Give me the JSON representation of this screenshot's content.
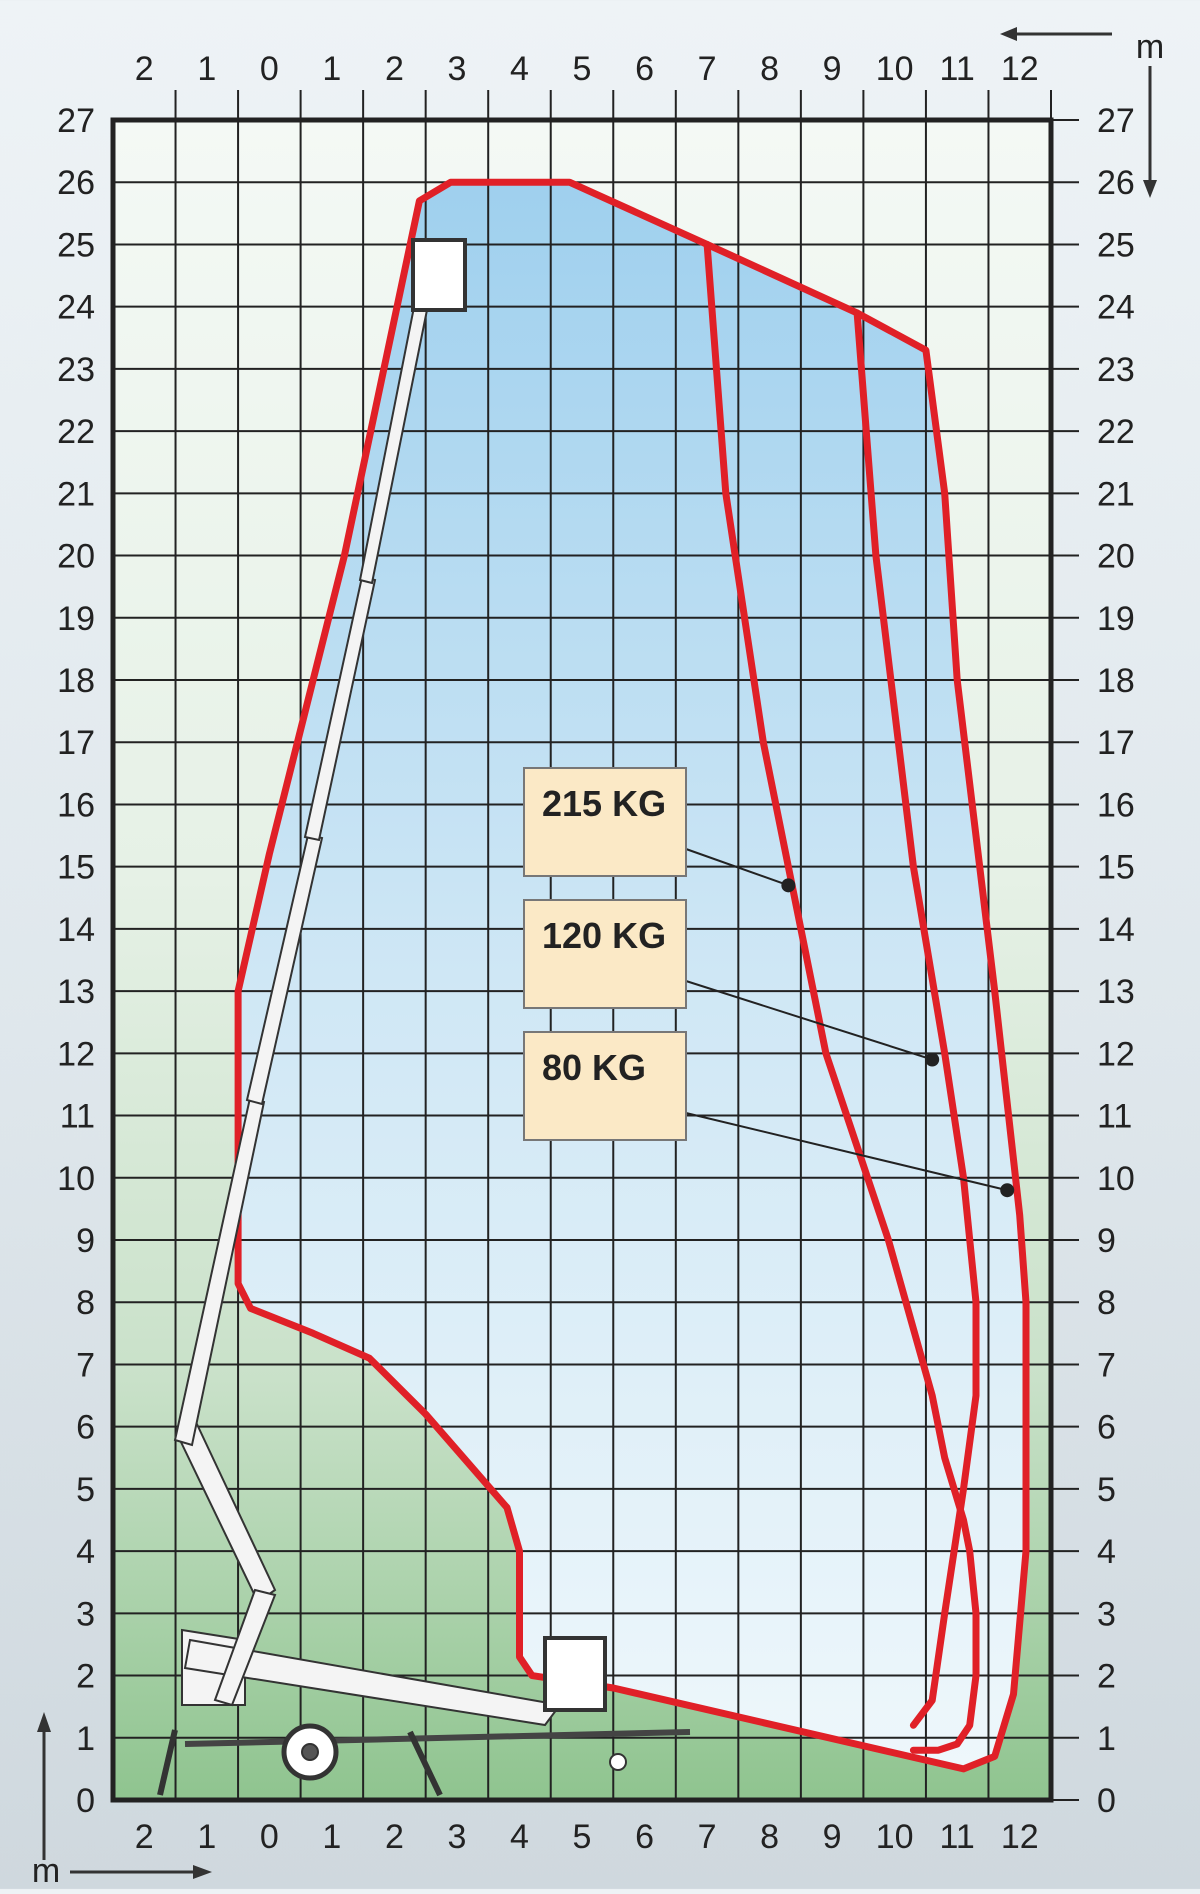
{
  "chart_data": {
    "type": "line",
    "title": "",
    "xlabel": "m",
    "ylabel": "m",
    "x_units": "m",
    "y_units": "m",
    "xlim": [
      -3,
      12
    ],
    "ylim": [
      0,
      27
    ],
    "grid": true,
    "x_tick_labels": [
      "2",
      "1",
      "0",
      "1",
      "2",
      "3",
      "4",
      "5",
      "6",
      "7",
      "8",
      "9",
      "10",
      "11",
      "12"
    ],
    "y_tick_labels": [
      "0",
      "1",
      "2",
      "3",
      "4",
      "5",
      "6",
      "7",
      "8",
      "9",
      "10",
      "11",
      "12",
      "13",
      "14",
      "15",
      "16",
      "17",
      "18",
      "19",
      "20",
      "21",
      "22",
      "23",
      "24",
      "25",
      "26",
      "27"
    ],
    "series": [
      {
        "name": "80 KG",
        "color": "#e02027",
        "x": [
          -1.0,
          -1.0,
          -0.5,
          0.7,
          1.9,
          2.4,
          4.3,
          6.5,
          8.9,
          10.0,
          10.3,
          10.5,
          11.1,
          11.5,
          11.6,
          11.6,
          11.4,
          11.1,
          10.6,
          5.0,
          3.7,
          3.5,
          3.5,
          3.3,
          2.0,
          1.1,
          0.2,
          -0.8,
          -1.0,
          -1.0
        ],
        "y": [
          11.6,
          13.0,
          15.2,
          20.0,
          25.7,
          26.0,
          26.0,
          25.0,
          23.9,
          23.3,
          21.0,
          18.0,
          13.0,
          9.4,
          8.0,
          4.0,
          1.7,
          0.7,
          0.5,
          1.8,
          2.0,
          2.3,
          4.0,
          4.7,
          6.2,
          7.1,
          7.5,
          7.9,
          8.3,
          9.3
        ]
      },
      {
        "name": "120 KG",
        "color": "#e02027",
        "x": [
          6.5,
          6.8,
          7.4,
          8.4,
          9.4,
          10.1,
          10.3,
          10.6,
          10.7,
          10.8,
          10.8,
          10.7,
          10.5,
          10.2,
          9.8
        ],
        "y": [
          25.0,
          21.0,
          17.0,
          12.0,
          9.0,
          6.5,
          5.5,
          4.5,
          4.0,
          3.0,
          2.0,
          1.2,
          0.9,
          0.8,
          0.8
        ]
      },
      {
        "name": "215 KG",
        "color": "#e02027",
        "x": [
          8.9,
          9.2,
          9.8,
          10.3,
          10.6,
          10.8,
          10.8,
          10.6,
          10.3,
          10.1,
          9.8
        ],
        "y": [
          23.9,
          20.0,
          15.0,
          12.0,
          10.0,
          8.0,
          6.5,
          5.0,
          3.0,
          1.6,
          1.2
        ]
      }
    ],
    "annotations": [
      {
        "text": "215 KG",
        "points_to": [
          7.8,
          14.7
        ]
      },
      {
        "text": "120 KG",
        "points_to": [
          10.1,
          11.9
        ]
      },
      {
        "text": "80 KG",
        "points_to": [
          11.3,
          9.8
        ]
      }
    ],
    "legend": "none"
  }
}
